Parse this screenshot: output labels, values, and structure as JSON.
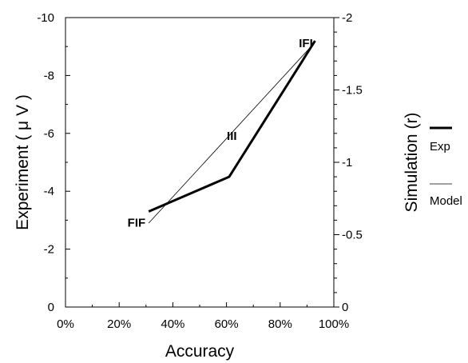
{
  "chart_data": {
    "type": "line",
    "title": "",
    "xlabel": "Accuracy",
    "ylabel_left": "Experiment ( μ V )",
    "ylabel_right": "Simulation (r)",
    "xlim": [
      0,
      100
    ],
    "ylim_left": [
      0,
      -10
    ],
    "ylim_right": [
      0,
      -2
    ],
    "grid": false,
    "legend_position": "right",
    "x_ticks": [
      0,
      20,
      40,
      60,
      80,
      100
    ],
    "x_tick_labels": [
      "0%",
      "20%",
      "40%",
      "60%",
      "80%",
      "100%"
    ],
    "y_left_ticks": [
      0,
      -2,
      -4,
      -6,
      -8,
      -10
    ],
    "y_left_tick_labels": [
      "0",
      "-2",
      "-4",
      "-6",
      "-8",
      "-10"
    ],
    "y_right_ticks": [
      0,
      -0.5,
      -1,
      -1.5,
      -2
    ],
    "y_right_tick_labels": [
      "0",
      "-0.5",
      "-1",
      "-1.5",
      "-2"
    ],
    "series": [
      {
        "name": "Exp",
        "axis": "left",
        "style": "thick",
        "color": "#000000",
        "x": [
          31,
          61,
          93
        ],
        "y": [
          -3.3,
          -4.5,
          -9.2
        ]
      },
      {
        "name": "Model",
        "axis": "right",
        "style": "thin",
        "color": "#000000",
        "x": [
          31,
          93
        ],
        "y": [
          -0.58,
          -1.83
        ]
      }
    ],
    "point_labels": [
      {
        "text": "FIF",
        "x": 31,
        "y": -3.0
      },
      {
        "text": "III",
        "x": 62,
        "y": -6.0
      },
      {
        "text": "IFI",
        "x": 91,
        "y": -9.2
      }
    ]
  }
}
